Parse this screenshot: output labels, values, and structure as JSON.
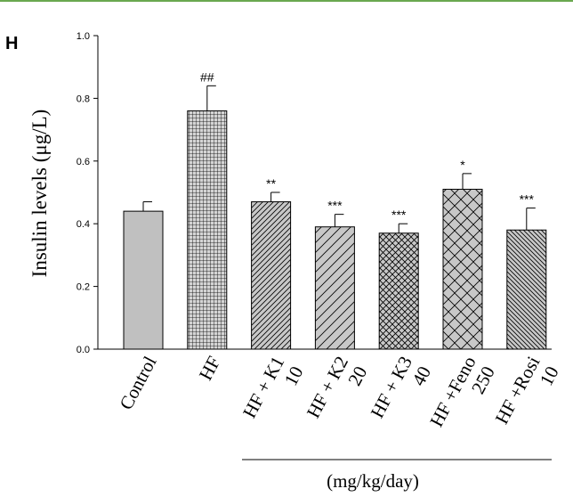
{
  "panel_label": "H",
  "unit_note": "(mg/kg/day)",
  "chart_data": {
    "type": "bar",
    "ylabel": "Insulin levels (μg/L)",
    "xlabel": "",
    "ylim": [
      0,
      1.0
    ],
    "yticks": [
      "0.0",
      "0.2",
      "0.4",
      "0.6",
      "0.8",
      "1.0"
    ],
    "categories": [
      {
        "lines": [
          "Control"
        ],
        "value": 0.44,
        "error": 0.03,
        "sig": "",
        "pattern": "solid-gray"
      },
      {
        "lines": [
          "HF"
        ],
        "value": 0.76,
        "error": 0.08,
        "sig": "##",
        "pattern": "grid"
      },
      {
        "lines": [
          "HF + K1",
          "10"
        ],
        "value": 0.47,
        "error": 0.03,
        "sig": "**",
        "pattern": "diag-dense"
      },
      {
        "lines": [
          "HF + K2",
          "20"
        ],
        "value": 0.39,
        "error": 0.04,
        "sig": "***",
        "pattern": "diag-sparse"
      },
      {
        "lines": [
          "HF + K3",
          "40"
        ],
        "value": 0.37,
        "error": 0.03,
        "sig": "***",
        "pattern": "crosshatch-fine"
      },
      {
        "lines": [
          "HF +Feno",
          "250"
        ],
        "value": 0.51,
        "error": 0.05,
        "sig": "*",
        "pattern": "crosshatch-coarse"
      },
      {
        "lines": [
          "HF +Rosi",
          "10"
        ],
        "value": 0.38,
        "error": 0.07,
        "sig": "***",
        "pattern": "back-diag-dense"
      }
    ],
    "colors": {
      "bar_fill": "#c0c0c0",
      "stroke": "#000000"
    }
  }
}
